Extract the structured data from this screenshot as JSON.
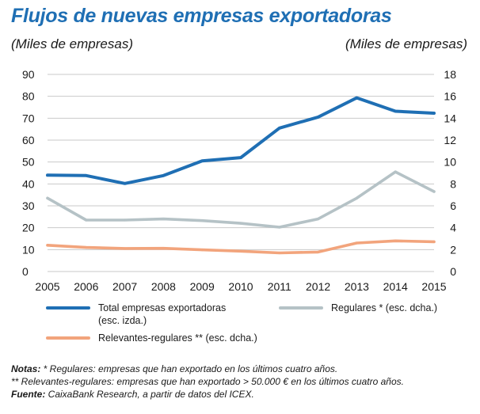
{
  "title": "Flujos de nuevas empresas exportadoras",
  "left_unit": "(Miles de empresas)",
  "right_unit": "(Miles de empresas)",
  "colors": {
    "title": "#1f6fb4",
    "total": "#1f6fb4",
    "regulares": "#b5c2c6",
    "relevantes": "#f2a47c"
  },
  "legend": {
    "total": "Total empresas exportadoras\n(esc. izda.)",
    "regulares": "Regulares * (esc. dcha.)",
    "relevantes": "Relevantes-regulares ** (esc. dcha.)"
  },
  "notes": {
    "line1_bold": "Notas:",
    "line1": " * Regulares: empresas que han exportado en los últimos cuatro años.",
    "line2": "** Relevantes-regulares: empresas que han exportado > 50.000 € en los últimos cuatro años.",
    "line3_bold": "Fuente:",
    "line3": " CaixaBank Research, a partir de datos del ICEX."
  },
  "chart_data": {
    "type": "line",
    "x": [
      "2005",
      "2006",
      "2007",
      "2008",
      "2009",
      "2010",
      "2011",
      "2012",
      "2013",
      "2014",
      "2015"
    ],
    "y_left_ticks": [
      "0",
      "10",
      "20",
      "30",
      "40",
      "50",
      "60",
      "70",
      "80",
      "90"
    ],
    "y_right_ticks": [
      "0",
      "2",
      "4",
      "6",
      "8",
      "10",
      "12",
      "14",
      "16",
      "18"
    ],
    "ylim_left": [
      0,
      90
    ],
    "ylim_right": [
      0,
      18
    ],
    "grid": true,
    "series": [
      {
        "key": "total",
        "name": "Total empresas exportadoras (esc. izda.)",
        "axis": "left",
        "values": [
          44,
          43.8,
          40.2,
          43.8,
          50.5,
          52,
          65.5,
          70.5,
          79.3,
          73.2,
          72.3
        ]
      },
      {
        "key": "regulares",
        "name": "Regulares * (esc. dcha.)",
        "axis": "right",
        "values": [
          6.7,
          4.7,
          4.7,
          4.8,
          4.65,
          4.4,
          4.05,
          4.8,
          6.7,
          9.1,
          7.3
        ]
      },
      {
        "key": "relevantes",
        "name": "Relevantes-regulares ** (esc. dcha.)",
        "axis": "right",
        "values": [
          2.4,
          2.2,
          2.1,
          2.12,
          1.98,
          1.86,
          1.7,
          1.78,
          2.6,
          2.8,
          2.72
        ]
      }
    ]
  }
}
